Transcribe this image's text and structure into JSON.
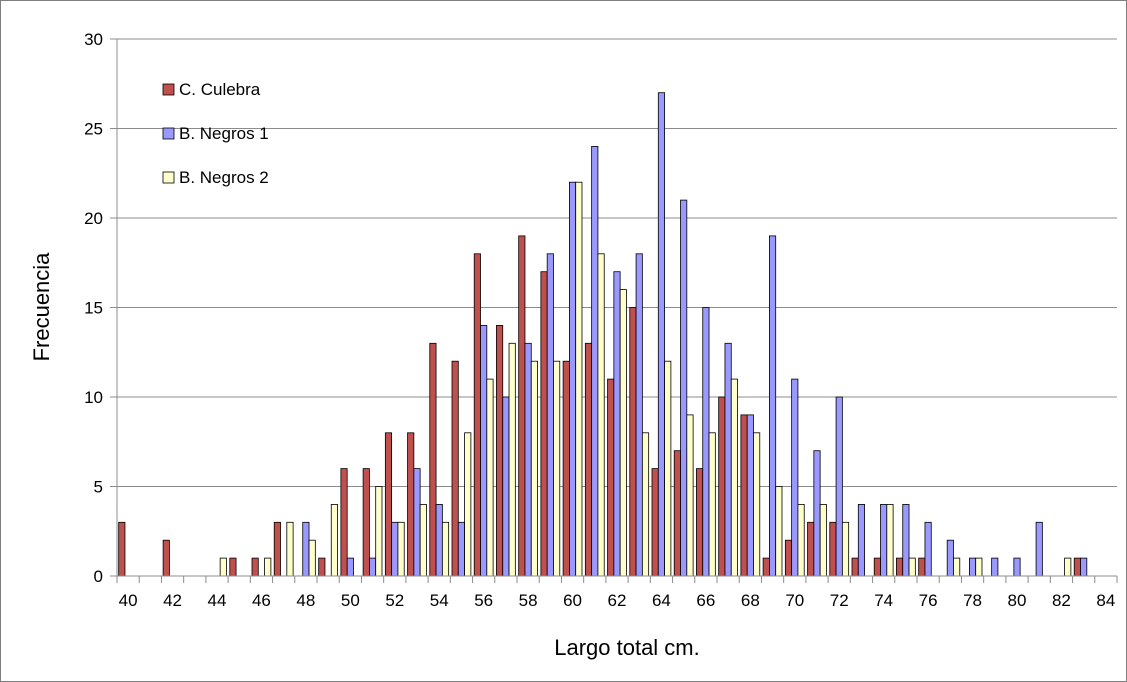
{
  "chart_data": {
    "type": "bar",
    "title": "",
    "xlabel": "Largo total cm.",
    "ylabel": "Frecuencia",
    "ylim": [
      0,
      30
    ],
    "yticks": [
      0,
      5,
      10,
      15,
      20,
      25,
      30
    ],
    "grid": true,
    "legend_position": "top-left",
    "categories": [
      40,
      41,
      42,
      43,
      44,
      45,
      46,
      47,
      48,
      49,
      50,
      51,
      52,
      53,
      54,
      55,
      56,
      57,
      58,
      59,
      60,
      61,
      62,
      63,
      64,
      65,
      66,
      67,
      68,
      69,
      70,
      71,
      72,
      73,
      74,
      75,
      76,
      77,
      78,
      79,
      80,
      81,
      82,
      83,
      84
    ],
    "x_tick_labels": [
      "40",
      "42",
      "44",
      "46",
      "48",
      "50",
      "52",
      "54",
      "56",
      "58",
      "60",
      "62",
      "64",
      "66",
      "68",
      "70",
      "72",
      "74",
      "76",
      "78",
      "80",
      "82",
      "84"
    ],
    "series": [
      {
        "name": "C. Culebra",
        "color": "#c0504d",
        "values": [
          3,
          0,
          2,
          0,
          0,
          1,
          1,
          3,
          0,
          1,
          6,
          6,
          8,
          8,
          13,
          12,
          18,
          14,
          19,
          17,
          12,
          13,
          11,
          15,
          6,
          7,
          6,
          10,
          9,
          1,
          2,
          3,
          3,
          1,
          1,
          1,
          1,
          0,
          0,
          0,
          0,
          0,
          0,
          1,
          0
        ]
      },
      {
        "name": "B. Negros 1",
        "color": "#9999ff",
        "values": [
          0,
          0,
          0,
          0,
          0,
          0,
          0,
          0,
          3,
          0,
          1,
          1,
          3,
          6,
          4,
          3,
          14,
          10,
          13,
          18,
          22,
          24,
          17,
          18,
          27,
          21,
          15,
          13,
          9,
          19,
          11,
          7,
          10,
          4,
          4,
          4,
          3,
          2,
          1,
          1,
          1,
          3,
          0,
          1,
          0
        ]
      },
      {
        "name": "B. Negros 2",
        "color": "#ffffcc",
        "values": [
          0,
          0,
          0,
          0,
          1,
          0,
          1,
          3,
          2,
          4,
          0,
          5,
          3,
          4,
          3,
          8,
          11,
          13,
          12,
          12,
          22,
          18,
          16,
          8,
          12,
          9,
          8,
          11,
          8,
          5,
          4,
          4,
          3,
          0,
          4,
          1,
          0,
          1,
          1,
          0,
          0,
          0,
          1,
          0,
          0
        ]
      }
    ]
  }
}
